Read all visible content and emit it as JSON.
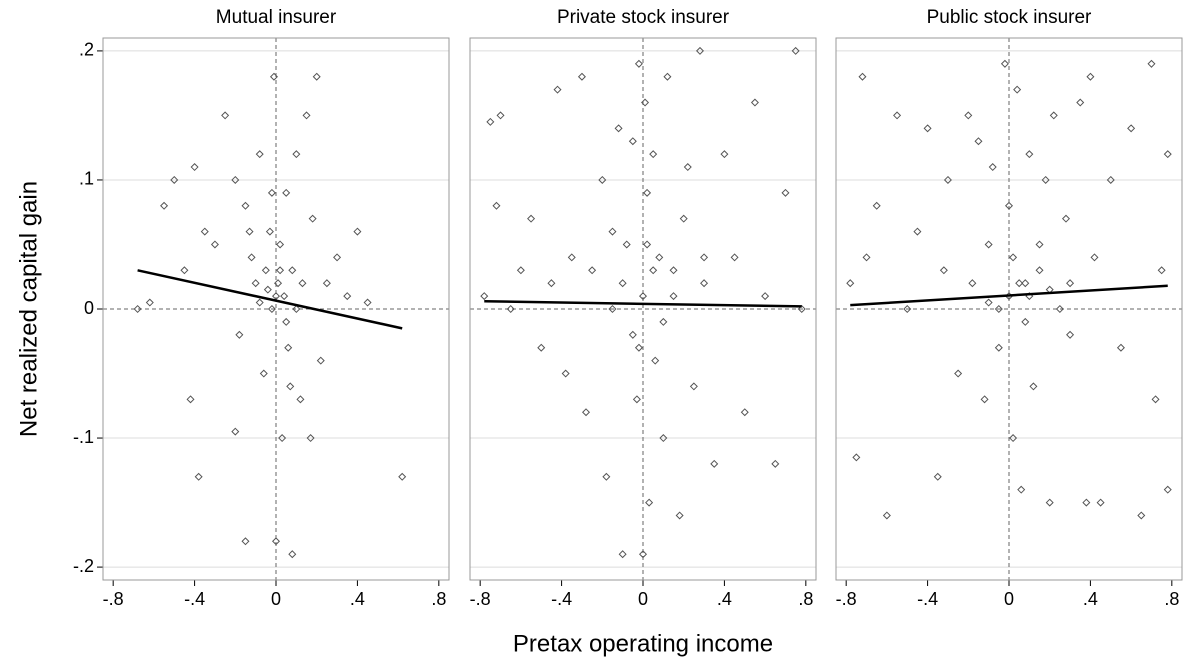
{
  "ylabel": "Net realized capital gain",
  "xlabel": "Pretax operating income",
  "chart_data": [
    {
      "type": "scatter",
      "title": "Mutual insurer",
      "marker_color": "#555555",
      "fit_color": "#000000",
      "x": [
        -0.68,
        -0.62,
        -0.55,
        -0.5,
        -0.45,
        -0.4,
        -0.38,
        -0.42,
        -0.35,
        -0.3,
        -0.25,
        -0.2,
        -0.18,
        -0.15,
        -0.12,
        -0.1,
        -0.08,
        -0.06,
        -0.05,
        -0.03,
        -0.02,
        -0.01,
        0.0,
        0.01,
        0.02,
        0.03,
        0.04,
        0.05,
        0.06,
        0.08,
        0.1,
        0.12,
        0.15,
        0.18,
        0.2,
        0.22,
        0.25,
        0.3,
        0.35,
        0.4,
        0.45,
        0.62,
        -0.15,
        0.08,
        -0.2,
        0.17,
        0.0,
        -0.04,
        0.05,
        0.1,
        -0.08,
        0.02,
        -0.13,
        0.07,
        -0.02,
        0.13
      ],
      "y": [
        0.0,
        0.005,
        0.08,
        0.1,
        0.03,
        0.11,
        -0.13,
        -0.07,
        0.06,
        0.05,
        0.15,
        0.1,
        -0.02,
        0.08,
        0.04,
        0.02,
        0.12,
        -0.05,
        0.03,
        0.06,
        0.0,
        0.18,
        -0.18,
        0.02,
        0.05,
        -0.1,
        0.01,
        0.09,
        -0.03,
        0.03,
        0.12,
        -0.07,
        0.15,
        0.07,
        0.18,
        -0.04,
        0.02,
        0.04,
        0.01,
        0.06,
        0.005,
        -0.13,
        -0.18,
        -0.19,
        -0.095,
        -0.1,
        0.01,
        0.015,
        -0.01,
        0.0,
        0.005,
        0.03,
        0.06,
        -0.06,
        0.09,
        0.02
      ],
      "fit": {
        "x": [
          -0.68,
          0.62
        ],
        "y": [
          0.03,
          -0.015
        ]
      },
      "xlim": [
        -0.85,
        0.85
      ],
      "ylim": [
        -0.21,
        0.21
      ],
      "xticks": [
        {
          "value": -0.8,
          "label": "-.8"
        },
        {
          "value": -0.4,
          "label": "-.4"
        },
        0,
        {
          "value": 0.4,
          "label": ".4"
        },
        {
          "value": 0.8,
          "label": ".8"
        }
      ],
      "yticks": [
        {
          "value": -0.2,
          "label": "-.2"
        },
        {
          "value": -0.1,
          "label": "-.1"
        },
        0,
        {
          "value": 0.1,
          "label": ".1"
        },
        {
          "value": 0.2,
          "label": ".2"
        }
      ]
    },
    {
      "type": "scatter",
      "title": "Private stock insurer",
      "marker_color": "#555555",
      "fit_color": "#000000",
      "x": [
        -0.78,
        -0.75,
        -0.72,
        -0.7,
        -0.65,
        -0.6,
        -0.55,
        -0.5,
        -0.45,
        -0.42,
        -0.38,
        -0.35,
        -0.3,
        -0.28,
        -0.25,
        -0.2,
        -0.18,
        -0.15,
        -0.12,
        -0.1,
        -0.08,
        -0.05,
        -0.03,
        -0.02,
        0.0,
        0.01,
        0.02,
        0.03,
        0.05,
        0.06,
        0.08,
        0.1,
        0.12,
        0.15,
        0.18,
        0.2,
        0.22,
        0.25,
        0.28,
        0.3,
        0.35,
        0.4,
        0.45,
        0.5,
        0.55,
        0.6,
        0.65,
        0.7,
        0.75,
        0.78,
        -0.1,
        0.05,
        0.0,
        -0.05,
        0.1,
        0.02,
        -0.02,
        0.15,
        -0.15,
        0.3
      ],
      "y": [
        0.01,
        0.145,
        0.08,
        0.15,
        0.0,
        0.03,
        0.07,
        -0.03,
        0.02,
        0.17,
        -0.05,
        0.04,
        0.18,
        -0.08,
        0.03,
        0.1,
        -0.13,
        0.06,
        0.14,
        -0.19,
        0.05,
        0.13,
        -0.07,
        0.19,
        -0.19,
        0.16,
        0.09,
        -0.15,
        0.12,
        -0.04,
        0.04,
        -0.1,
        0.18,
        0.03,
        -0.16,
        0.07,
        0.11,
        -0.06,
        0.2,
        0.02,
        -0.12,
        0.12,
        0.04,
        -0.08,
        0.16,
        0.01,
        -0.12,
        0.09,
        0.2,
        0.0,
        0.02,
        0.03,
        0.01,
        -0.02,
        -0.01,
        0.05,
        -0.03,
        0.01,
        0.0,
        0.04
      ],
      "fit": {
        "x": [
          -0.78,
          0.78
        ],
        "y": [
          0.006,
          0.002
        ]
      },
      "xlim": [
        -0.85,
        0.85
      ],
      "ylim": [
        -0.21,
        0.21
      ],
      "xticks": [
        {
          "value": -0.8,
          "label": "-.8"
        },
        {
          "value": -0.4,
          "label": "-.4"
        },
        0,
        {
          "value": 0.4,
          "label": ".4"
        },
        {
          "value": 0.8,
          "label": ".8"
        }
      ],
      "yticks": [
        {
          "value": -0.2,
          "label": "-.2"
        },
        {
          "value": -0.1,
          "label": "-.1"
        },
        0,
        {
          "value": 0.1,
          "label": ".1"
        },
        {
          "value": 0.2,
          "label": ".2"
        }
      ]
    },
    {
      "type": "scatter",
      "title": "Public stock insurer",
      "marker_color": "#555555",
      "fit_color": "#000000",
      "x": [
        -0.78,
        -0.75,
        -0.72,
        -0.7,
        -0.65,
        -0.6,
        -0.55,
        -0.5,
        -0.45,
        -0.4,
        -0.35,
        -0.32,
        -0.3,
        -0.25,
        -0.2,
        -0.18,
        -0.15,
        -0.12,
        -0.1,
        -0.08,
        -0.05,
        -0.02,
        0.0,
        0.02,
        0.04,
        0.06,
        0.08,
        0.1,
        0.12,
        0.15,
        0.18,
        0.2,
        0.22,
        0.25,
        0.28,
        0.3,
        0.35,
        0.38,
        0.4,
        0.42,
        0.45,
        0.5,
        0.55,
        0.6,
        0.65,
        0.7,
        0.72,
        0.75,
        0.78,
        0.78,
        0.0,
        0.05,
        0.1,
        -0.05,
        0.15,
        0.2,
        -0.1,
        0.3,
        0.08,
        0.02
      ],
      "y": [
        0.02,
        -0.115,
        0.18,
        0.04,
        0.08,
        -0.16,
        0.15,
        0.0,
        0.06,
        0.14,
        -0.13,
        0.03,
        0.1,
        -0.05,
        0.15,
        0.02,
        0.13,
        -0.07,
        0.05,
        0.11,
        -0.03,
        0.19,
        0.08,
        -0.1,
        0.17,
        -0.14,
        0.02,
        0.12,
        -0.06,
        0.05,
        0.1,
        -0.15,
        0.15,
        0.0,
        0.07,
        -0.02,
        0.16,
        -0.15,
        0.18,
        0.04,
        -0.15,
        0.1,
        -0.03,
        0.14,
        -0.16,
        0.19,
        -0.07,
        0.03,
        -0.14,
        0.12,
        0.01,
        0.02,
        0.01,
        0.0,
        0.03,
        0.015,
        0.005,
        0.02,
        -0.01,
        0.04
      ],
      "fit": {
        "x": [
          -0.78,
          0.78
        ],
        "y": [
          0.003,
          0.018
        ]
      },
      "xlim": [
        -0.85,
        0.85
      ],
      "ylim": [
        -0.21,
        0.21
      ],
      "xticks": [
        {
          "value": -0.8,
          "label": "-.8"
        },
        {
          "value": -0.4,
          "label": "-.4"
        },
        0,
        {
          "value": 0.4,
          "label": ".4"
        },
        {
          "value": 0.8,
          "label": ".8"
        }
      ],
      "yticks": [
        {
          "value": -0.2,
          "label": "-.2"
        },
        {
          "value": -0.1,
          "label": "-.1"
        },
        0,
        {
          "value": 0.1,
          "label": ".1"
        },
        {
          "value": 0.2,
          "label": ".2"
        }
      ]
    }
  ]
}
